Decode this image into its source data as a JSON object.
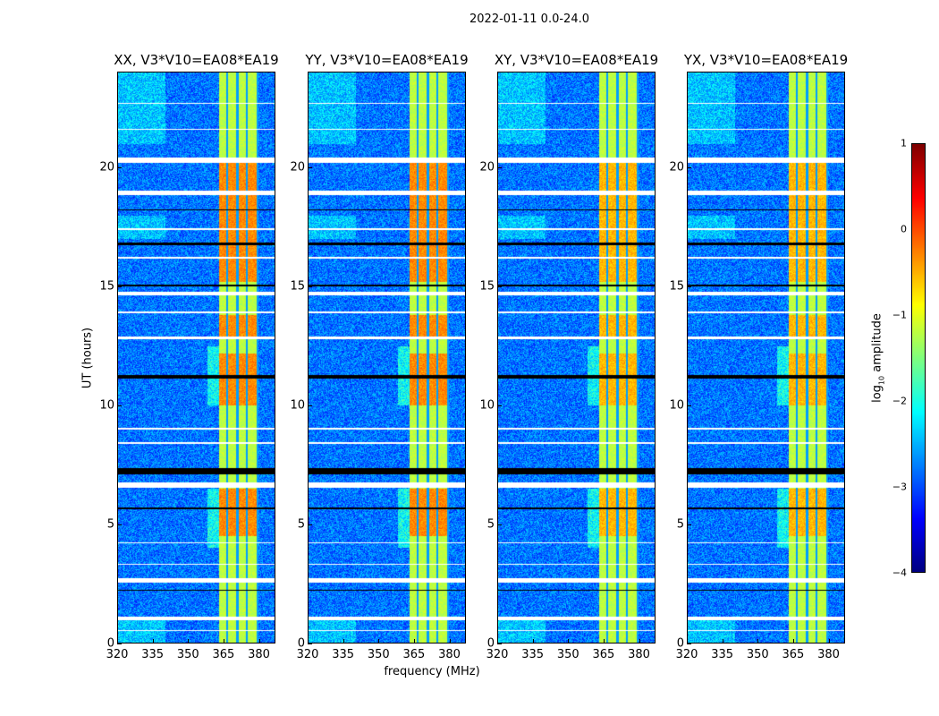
{
  "chart_data": {
    "type": "heatmap",
    "title": "2022-01-11 0.0-24.0",
    "xlabel": "frequency (MHz)",
    "ylabel": "UT (hours)",
    "xlim": [
      320,
      387
    ],
    "ylim": [
      0,
      24
    ],
    "xticks": [
      "320",
      "335",
      "350",
      "365",
      "380"
    ],
    "xtick_values": [
      320,
      335,
      350,
      365,
      380
    ],
    "yticks": [
      "0",
      "5",
      "10",
      "15",
      "20"
    ],
    "ytick_values": [
      0,
      5,
      10,
      15,
      20
    ],
    "panels": [
      {
        "title": "XX, V3*V10=EA08*EA19",
        "strength": 1.0
      },
      {
        "title": "YY, V3*V10=EA08*EA19",
        "strength": 1.0
      },
      {
        "title": "XY, V3*V10=EA08*EA19",
        "strength": 0.75
      },
      {
        "title": "YX, V3*V10=EA08*EA19",
        "strength": 0.75
      }
    ],
    "background_log_amplitude": -2.8,
    "rfi_band_mhz": [
      363,
      380
    ],
    "rfi_band_log_amplitude": -1.2,
    "rfi_band_gaps_mhz": [
      366.5,
      371,
      375,
      379.5
    ],
    "strong_hours": [
      [
        4.5,
        6.5
      ],
      [
        10,
        12.2
      ],
      [
        12.8,
        13.8
      ],
      [
        15.2,
        20.2
      ]
    ],
    "flagged_hours_white": [
      [
        20.2,
        20.45
      ],
      [
        18.85,
        19.05
      ],
      [
        14.65,
        14.8
      ],
      [
        12.8,
        12.9
      ],
      [
        6.55,
        6.75
      ],
      [
        2.55,
        2.75
      ],
      [
        0.95,
        1.1
      ],
      [
        22.7,
        22.75
      ],
      [
        21.6,
        21.65
      ],
      [
        17.4,
        17.45
      ],
      [
        16.2,
        16.25
      ],
      [
        13.9,
        13.95
      ],
      [
        9.0,
        9.05
      ],
      [
        8.4,
        8.45
      ],
      [
        4.2,
        4.25
      ],
      [
        3.3,
        3.35
      ],
      [
        0.5,
        0.55
      ]
    ],
    "flagged_hours_black": [
      [
        18.2,
        18.27
      ],
      [
        16.75,
        16.85
      ],
      [
        15.0,
        15.1
      ],
      [
        11.15,
        11.3
      ],
      [
        7.1,
        7.35
      ],
      [
        5.65,
        5.72
      ],
      [
        2.2,
        2.25
      ]
    ],
    "colorbar": {
      "label": "log10 amplitude",
      "label_main": "log",
      "label_sub": "10",
      "label_rest": " amplitude",
      "range": [
        -4,
        1
      ],
      "ticks": [
        "1",
        "0",
        "−1",
        "−2",
        "−3",
        "−4"
      ],
      "tick_values": [
        1,
        0,
        -1,
        -2,
        -3,
        -4
      ],
      "colormap": "jet"
    }
  }
}
